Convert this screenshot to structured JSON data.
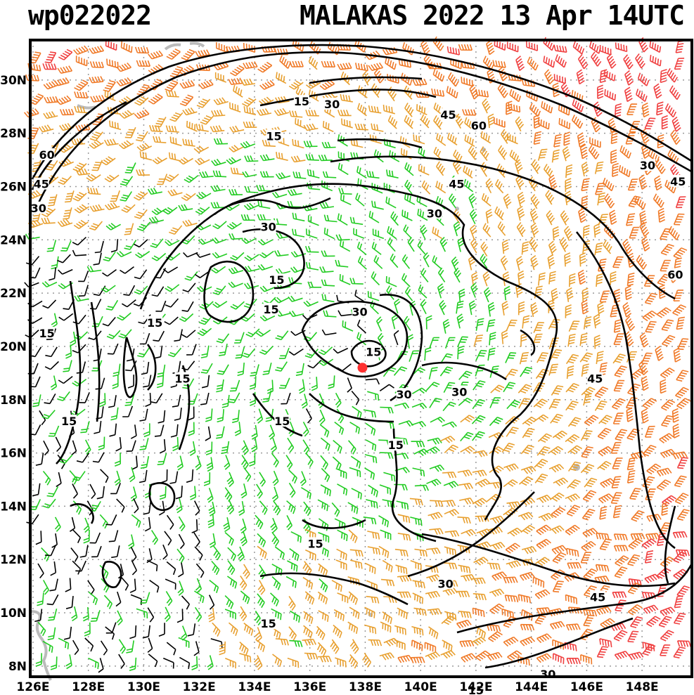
{
  "title_left": "wp022022",
  "title_right": "MALAKAS 2022 13 Apr 14UTC",
  "lon_labels": [
    "126E",
    "128E",
    "130E",
    "132E",
    "134E",
    "136E",
    "138E",
    "140E",
    "142E",
    "144E",
    "146E",
    "148E"
  ],
  "lon_values": [
    126,
    128,
    130,
    132,
    134,
    136,
    138,
    140,
    142,
    144,
    146,
    148
  ],
  "lat_labels": [
    "30N",
    "28N",
    "26N",
    "24N",
    "22N",
    "20N",
    "18N",
    "16N",
    "14N",
    "12N",
    "10N",
    "8N"
  ],
  "lat_values": [
    30,
    28,
    26,
    24,
    22,
    20,
    18,
    16,
    14,
    12,
    10,
    8
  ],
  "domain": {
    "lon_min": 125.9,
    "lon_max": 149.8,
    "lat_min": 7.6,
    "lat_max": 31.5
  },
  "storm_center": {
    "lon": 137.9,
    "lat": 19.2
  },
  "colors": {
    "frame": "#000000",
    "grid": "#9a9a9a",
    "calm_barb": "#000000",
    "barb_15_30": "#22cc22",
    "barb_30_45": "#e8a030",
    "barb_45_60": "#f07a28",
    "barb_60_plus": "#f04040",
    "coastline": "#bbbbbb",
    "storm_marker": "#ff3030"
  },
  "contour_labels": [
    {
      "text": "15",
      "lon": 135.7,
      "lat": 29.2
    },
    {
      "text": "30",
      "lon": 136.8,
      "lat": 29.1
    },
    {
      "text": "45",
      "lon": 141.0,
      "lat": 28.7
    },
    {
      "text": "60",
      "lon": 142.1,
      "lat": 28.3
    },
    {
      "text": "15",
      "lon": 134.7,
      "lat": 27.9
    },
    {
      "text": "60",
      "lon": 126.5,
      "lat": 27.2
    },
    {
      "text": "45",
      "lon": 126.3,
      "lat": 26.1
    },
    {
      "text": "30",
      "lon": 126.2,
      "lat": 25.2
    },
    {
      "text": "30",
      "lon": 148.2,
      "lat": 26.8
    },
    {
      "text": "45",
      "lon": 149.3,
      "lat": 26.2
    },
    {
      "text": "45",
      "lon": 141.3,
      "lat": 26.1
    },
    {
      "text": "30",
      "lon": 140.5,
      "lat": 25.0
    },
    {
      "text": "30",
      "lon": 134.5,
      "lat": 24.5
    },
    {
      "text": "60",
      "lon": 149.2,
      "lat": 22.7
    },
    {
      "text": "15",
      "lon": 134.8,
      "lat": 22.5
    },
    {
      "text": "15",
      "lon": 134.6,
      "lat": 21.4
    },
    {
      "text": "30",
      "lon": 137.8,
      "lat": 21.3
    },
    {
      "text": "15",
      "lon": 130.4,
      "lat": 20.9
    },
    {
      "text": "15",
      "lon": 138.3,
      "lat": 19.8
    },
    {
      "text": "15",
      "lon": 126.5,
      "lat": 20.5
    },
    {
      "text": "15",
      "lon": 131.4,
      "lat": 18.8
    },
    {
      "text": "45",
      "lon": 146.3,
      "lat": 18.8
    },
    {
      "text": "30",
      "lon": 139.4,
      "lat": 18.2
    },
    {
      "text": "30",
      "lon": 141.4,
      "lat": 18.3
    },
    {
      "text": "15",
      "lon": 127.3,
      "lat": 17.2
    },
    {
      "text": "15",
      "lon": 135.0,
      "lat": 17.2
    },
    {
      "text": "15",
      "lon": 139.1,
      "lat": 16.3
    },
    {
      "text": "15",
      "lon": 136.2,
      "lat": 12.6
    },
    {
      "text": "30",
      "lon": 140.9,
      "lat": 11.1
    },
    {
      "text": "45",
      "lon": 146.4,
      "lat": 10.6
    },
    {
      "text": "15",
      "lon": 134.5,
      "lat": 9.6
    },
    {
      "text": "30",
      "lon": 144.6,
      "lat": 7.7
    },
    {
      "text": "15",
      "lon": 142.0,
      "lat": 7.1
    }
  ]
}
